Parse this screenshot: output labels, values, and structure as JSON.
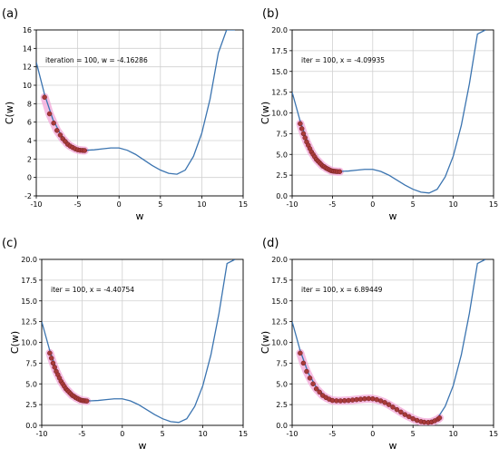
{
  "chart_data": [
    {
      "type": "line",
      "panel_label": "(a)",
      "annotation": "iteration = 100, w = -4.16286",
      "xlabel": "w",
      "ylabel": "C(w)",
      "xlim": [
        -10,
        15
      ],
      "ylim": [
        -2,
        16
      ],
      "xticks": [
        -10,
        -5,
        0,
        5,
        10,
        15
      ],
      "yticks": [
        -2,
        0,
        2,
        4,
        6,
        8,
        10,
        12,
        14,
        16
      ],
      "grid": true,
      "curve": {
        "x": [
          -10,
          -9,
          -8,
          -7,
          -6,
          -5,
          -4,
          -3,
          -2,
          -1,
          0,
          1,
          2,
          3,
          4,
          5,
          6,
          7,
          8,
          9,
          10,
          11,
          12,
          13,
          14
        ],
        "y": [
          12.5,
          9.0,
          6.3,
          4.6,
          3.6,
          3.1,
          2.95,
          3.0,
          3.1,
          3.2,
          3.2,
          2.95,
          2.5,
          1.9,
          1.3,
          0.8,
          0.45,
          0.35,
          0.8,
          2.3,
          4.8,
          8.5,
          13.5,
          16,
          16
        ]
      },
      "points": {
        "x": [
          -9.0,
          -8.4,
          -7.9,
          -7.5,
          -7.1,
          -6.8,
          -6.5,
          -6.2,
          -5.9,
          -5.6,
          -5.3,
          -5.0,
          -4.7,
          -4.4,
          -4.16
        ],
        "y": [
          8.7,
          6.9,
          5.9,
          5.1,
          4.6,
          4.2,
          3.9,
          3.6,
          3.4,
          3.25,
          3.1,
          3.0,
          2.95,
          2.93,
          2.92
        ]
      }
    },
    {
      "type": "line",
      "panel_label": "(b)",
      "annotation": "iter = 100, x = -4.09935",
      "xlabel": "w",
      "ylabel": "C(w)",
      "xlim": [
        -10,
        15
      ],
      "ylim": [
        0,
        20
      ],
      "xticks": [
        -10,
        -5,
        0,
        5,
        10,
        15
      ],
      "yticks": [
        0.0,
        2.5,
        5.0,
        7.5,
        10.0,
        12.5,
        15.0,
        17.5,
        20.0
      ],
      "ytick_labels": [
        "0.0",
        "2.5",
        "5.0",
        "7.5",
        "10.0",
        "12.5",
        "15.0",
        "17.5",
        "20.0"
      ],
      "grid": true,
      "curve": {
        "x": [
          -10,
          -9,
          -8,
          -7,
          -6,
          -5,
          -4,
          -3,
          -2,
          -1,
          0,
          1,
          2,
          3,
          4,
          5,
          6,
          7,
          8,
          9,
          10,
          11,
          12,
          13,
          14
        ],
        "y": [
          12.5,
          9.0,
          6.3,
          4.6,
          3.6,
          3.1,
          2.95,
          3.0,
          3.1,
          3.2,
          3.2,
          2.95,
          2.5,
          1.9,
          1.3,
          0.8,
          0.45,
          0.35,
          0.8,
          2.3,
          4.8,
          8.5,
          13.5,
          19.5,
          20
        ]
      },
      "points": {
        "x": [
          -9.0,
          -8.8,
          -8.6,
          -8.4,
          -8.2,
          -8.0,
          -7.8,
          -7.6,
          -7.4,
          -7.2,
          -7.0,
          -6.8,
          -6.6,
          -6.4,
          -6.2,
          -6.0,
          -5.8,
          -5.6,
          -5.4,
          -5.2,
          -5.0,
          -4.8,
          -4.6,
          -4.4,
          -4.1
        ],
        "y": [
          8.7,
          8.1,
          7.5,
          7.0,
          6.5,
          6.1,
          5.7,
          5.3,
          5.0,
          4.7,
          4.4,
          4.2,
          4.0,
          3.8,
          3.6,
          3.5,
          3.35,
          3.25,
          3.15,
          3.05,
          3.0,
          2.97,
          2.95,
          2.93,
          2.92
        ]
      }
    },
    {
      "type": "line",
      "panel_label": "(c)",
      "annotation": "iter = 100, x = -4.40754",
      "xlabel": "w",
      "ylabel": "C(w)",
      "xlim": [
        -10,
        15
      ],
      "ylim": [
        0,
        20
      ],
      "xticks": [
        -10,
        -5,
        0,
        5,
        10,
        15
      ],
      "yticks": [
        0.0,
        2.5,
        5.0,
        7.5,
        10.0,
        12.5,
        15.0,
        17.5,
        20.0
      ],
      "ytick_labels": [
        "0.0",
        "2.5",
        "5.0",
        "7.5",
        "10.0",
        "12.5",
        "15.0",
        "17.5",
        "20.0"
      ],
      "grid": true,
      "curve": {
        "x": [
          -10,
          -9,
          -8,
          -7,
          -6,
          -5,
          -4,
          -3,
          -2,
          -1,
          0,
          1,
          2,
          3,
          4,
          5,
          6,
          7,
          8,
          9,
          10,
          11,
          12,
          13,
          14
        ],
        "y": [
          12.5,
          9.0,
          6.3,
          4.6,
          3.6,
          3.1,
          2.95,
          3.0,
          3.1,
          3.2,
          3.2,
          2.95,
          2.5,
          1.9,
          1.3,
          0.8,
          0.45,
          0.35,
          0.8,
          2.3,
          4.8,
          8.5,
          13.5,
          19.5,
          20
        ]
      },
      "points": {
        "x": [
          -9.0,
          -8.8,
          -8.6,
          -8.4,
          -8.2,
          -8.0,
          -7.8,
          -7.6,
          -7.4,
          -7.2,
          -7.0,
          -6.8,
          -6.6,
          -6.4,
          -6.2,
          -6.0,
          -5.8,
          -5.6,
          -5.4,
          -5.2,
          -5.0,
          -4.8,
          -4.6,
          -4.41
        ],
        "y": [
          8.7,
          8.1,
          7.5,
          7.0,
          6.5,
          6.1,
          5.7,
          5.3,
          5.0,
          4.7,
          4.4,
          4.2,
          4.0,
          3.8,
          3.6,
          3.5,
          3.35,
          3.25,
          3.15,
          3.05,
          3.0,
          2.97,
          2.95,
          2.93
        ]
      }
    },
    {
      "type": "line",
      "panel_label": "(d)",
      "annotation": "iter = 100, x = 6.89449",
      "xlabel": "w",
      "ylabel": "C(w)",
      "xlim": [
        -10,
        15
      ],
      "ylim": [
        0,
        20
      ],
      "xticks": [
        -10,
        -5,
        0,
        5,
        10,
        15
      ],
      "yticks": [
        0.0,
        2.5,
        5.0,
        7.5,
        10.0,
        12.5,
        15.0,
        17.5,
        20.0
      ],
      "ytick_labels": [
        "0.0",
        "2.5",
        "5.0",
        "7.5",
        "10.0",
        "12.5",
        "15.0",
        "17.5",
        "20.0"
      ],
      "grid": true,
      "curve": {
        "x": [
          -10,
          -9,
          -8,
          -7,
          -6,
          -5,
          -4,
          -3,
          -2,
          -1,
          0,
          1,
          2,
          3,
          4,
          5,
          6,
          7,
          8,
          9,
          10,
          11,
          12,
          13,
          14
        ],
        "y": [
          12.5,
          9.0,
          6.3,
          4.6,
          3.6,
          3.1,
          2.95,
          3.0,
          3.1,
          3.2,
          3.2,
          2.95,
          2.5,
          1.9,
          1.3,
          0.8,
          0.45,
          0.35,
          0.8,
          2.3,
          4.8,
          8.5,
          13.5,
          19.5,
          20
        ]
      },
      "points": {
        "x": [
          -9.0,
          -8.6,
          -8.2,
          -7.8,
          -7.4,
          -7.0,
          -6.6,
          -6.2,
          -5.8,
          -5.4,
          -5.0,
          -4.5,
          -4.0,
          -3.5,
          -3.0,
          -2.5,
          -2.0,
          -1.5,
          -1.0,
          -0.5,
          0.0,
          0.5,
          1.0,
          1.5,
          2.0,
          2.5,
          3.0,
          3.5,
          4.0,
          4.5,
          5.0,
          5.5,
          6.0,
          6.4,
          6.89,
          7.3,
          7.7,
          8.1,
          8.3
        ],
        "y": [
          8.7,
          7.5,
          6.5,
          5.7,
          5.0,
          4.4,
          4.0,
          3.6,
          3.35,
          3.15,
          3.0,
          2.96,
          2.95,
          2.98,
          3.0,
          3.05,
          3.1,
          3.15,
          3.2,
          3.22,
          3.2,
          3.1,
          2.95,
          2.75,
          2.5,
          2.2,
          1.9,
          1.6,
          1.3,
          1.05,
          0.8,
          0.6,
          0.45,
          0.38,
          0.35,
          0.4,
          0.55,
          0.75,
          0.9
        ]
      }
    }
  ],
  "colors": {
    "curve": "#3b74b0",
    "points": "#a83a3a",
    "point_edge": "#6e1f1f",
    "glow": "#f3a6d8",
    "grid": "#d0d0d0"
  }
}
